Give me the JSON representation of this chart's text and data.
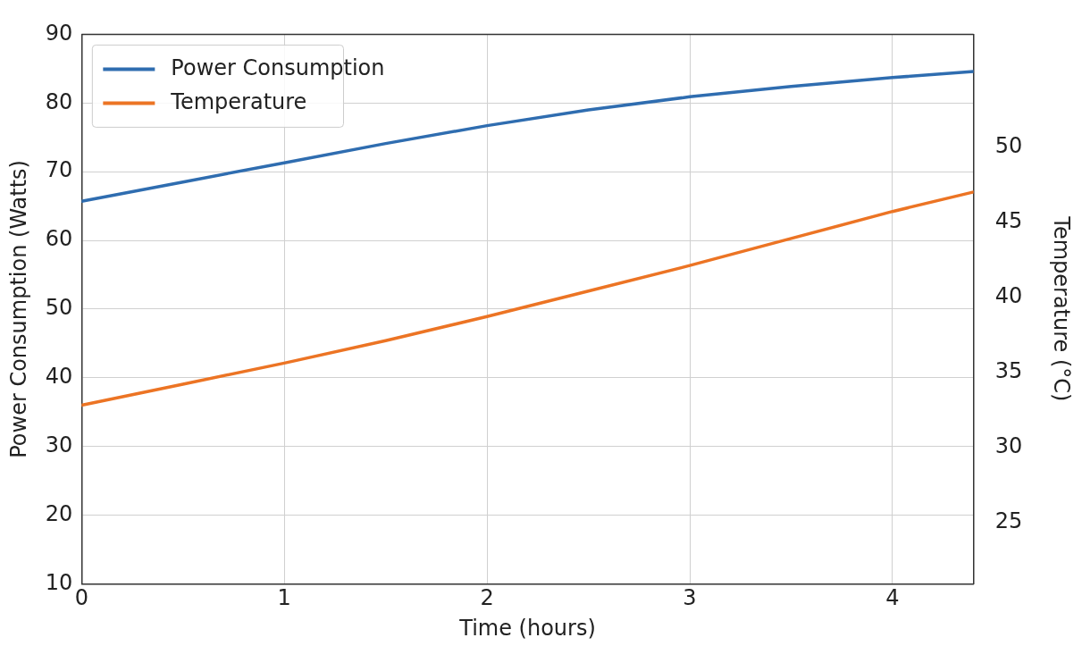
{
  "chart_data": {
    "type": "line",
    "xlabel": "Time (hours)",
    "ylabel": "Power Consumption (Watts)",
    "y2label": "Temperature (°C)",
    "x": [
      0,
      0.5,
      1,
      1.5,
      2,
      2.5,
      3,
      3.5,
      4,
      4.4
    ],
    "series": [
      {
        "name": "Power Consumption",
        "color": "#2f6db0",
        "values": [
          65.7,
          68.5,
          71.3,
          74.1,
          76.7,
          79.0,
          80.9,
          82.4,
          83.7,
          84.6
        ]
      },
      {
        "name": "Temperature",
        "color": "#ec7424",
        "axis": "y2",
        "values": [
          32.8,
          34.2,
          35.6,
          37.1,
          38.7,
          40.4,
          42.1,
          43.9,
          45.7,
          47.0
        ]
      }
    ],
    "xlim": [
      0,
      4.4
    ],
    "xticks": [
      0,
      1,
      2,
      3,
      4
    ],
    "ylim": [
      10,
      90
    ],
    "yticks": [
      10,
      20,
      30,
      40,
      50,
      60,
      70,
      80,
      90
    ],
    "y2lim": [
      20.9,
      57.5
    ],
    "y2ticks": [
      25,
      30,
      35,
      40,
      45,
      50
    ],
    "grid": true,
    "legend": "top left",
    "marker": "none",
    "line_style": "solid"
  }
}
